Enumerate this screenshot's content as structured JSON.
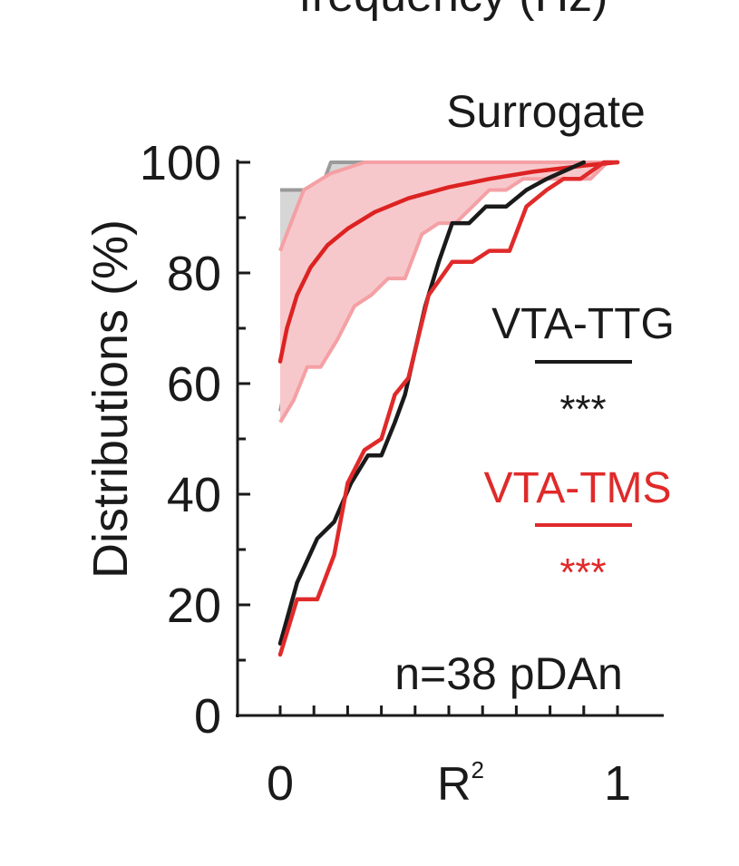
{
  "chart_data": {
    "type": "line",
    "cropped_title": "frequency (Hz)",
    "panel_title": "Surrogate",
    "xlabel": "R",
    "xlabel_superscript": "2",
    "ylabel": "Distributions (%)",
    "xlim": [
      0,
      1
    ],
    "ylim": [
      0,
      100
    ],
    "xticks": [
      {
        "value": 0,
        "label": "0"
      },
      {
        "value": 1,
        "label": "1"
      }
    ],
    "yticks": [
      {
        "value": 0,
        "label": "0"
      },
      {
        "value": 20,
        "label": "20"
      },
      {
        "value": 40,
        "label": "40"
      },
      {
        "value": 60,
        "label": "60"
      },
      {
        "value": 80,
        "label": "80"
      },
      {
        "value": 100,
        "label": "100"
      }
    ],
    "annotation": "n=38 pDAn",
    "series": [
      {
        "name": "VTA-TTG",
        "significance": "***",
        "color": "#1a1a1a",
        "x": [
          0.0,
          0.05,
          0.11,
          0.16,
          0.21,
          0.26,
          0.3,
          0.34,
          0.37,
          0.4,
          0.43,
          0.47,
          0.51,
          0.56,
          0.61,
          0.67,
          0.73,
          0.79,
          0.9
        ],
        "y": [
          13,
          24,
          32,
          35,
          42,
          47,
          47,
          53,
          58,
          66,
          74,
          82,
          89,
          89,
          92,
          92,
          95,
          97,
          100
        ]
      },
      {
        "name": "VTA-TMS",
        "significance": "***",
        "color": "#e02a2a",
        "x": [
          0.0,
          0.05,
          0.11,
          0.16,
          0.2,
          0.25,
          0.3,
          0.34,
          0.38,
          0.44,
          0.51,
          0.57,
          0.62,
          0.68,
          0.73,
          0.79,
          0.84,
          0.89,
          0.96,
          1.0
        ],
        "y": [
          11,
          21,
          21,
          29,
          42,
          48,
          50,
          58,
          61,
          76,
          82,
          82,
          84,
          84,
          92,
          95,
          97,
          97,
          100,
          100
        ]
      },
      {
        "name": "VTA-TMS surrogate mean",
        "color": "#dd2222",
        "x": [
          0.0,
          0.02,
          0.05,
          0.09,
          0.14,
          0.2,
          0.28,
          0.38,
          0.5,
          0.62,
          0.75,
          0.9,
          1.0
        ],
        "y": [
          64,
          70,
          76,
          81,
          85,
          88,
          91,
          93.5,
          95.5,
          97,
          98.3,
          99.4,
          100
        ]
      }
    ],
    "bands": [
      {
        "name": "VTA-TMS surrogate range",
        "color": "#f4a0a4",
        "fill": "#f7c8cb",
        "x_upper": [
          0.0,
          0.07,
          0.15,
          0.25,
          0.35,
          0.5,
          0.7,
          1.0
        ],
        "upper": [
          84,
          95,
          98,
          100,
          100,
          100,
          100,
          100
        ],
        "x_lower": [
          0.0,
          0.04,
          0.08,
          0.12,
          0.17,
          0.22,
          0.27,
          0.32,
          0.37,
          0.42,
          0.47,
          0.52,
          0.57,
          0.62,
          0.67,
          0.72,
          0.77,
          0.82,
          0.87,
          0.92,
          0.97,
          1.0
        ],
        "lower": [
          53,
          57,
          63,
          63,
          68,
          74,
          76,
          79,
          79,
          87,
          89,
          89,
          92,
          95,
          95,
          97,
          97,
          97,
          97,
          97,
          100,
          100
        ]
      },
      {
        "name": "VTA-TTG surrogate range",
        "color": "#9a9a9a",
        "fill": "#d6d6d6",
        "x_upper": [
          0.0,
          0.12,
          0.15,
          0.3,
          1.0
        ],
        "upper": [
          95,
          95,
          100,
          100,
          100
        ],
        "x_lower": [
          0.0,
          0.12,
          0.15,
          0.3,
          1.0
        ],
        "lower": [
          55,
          90,
          97,
          100,
          100
        ]
      }
    ]
  }
}
